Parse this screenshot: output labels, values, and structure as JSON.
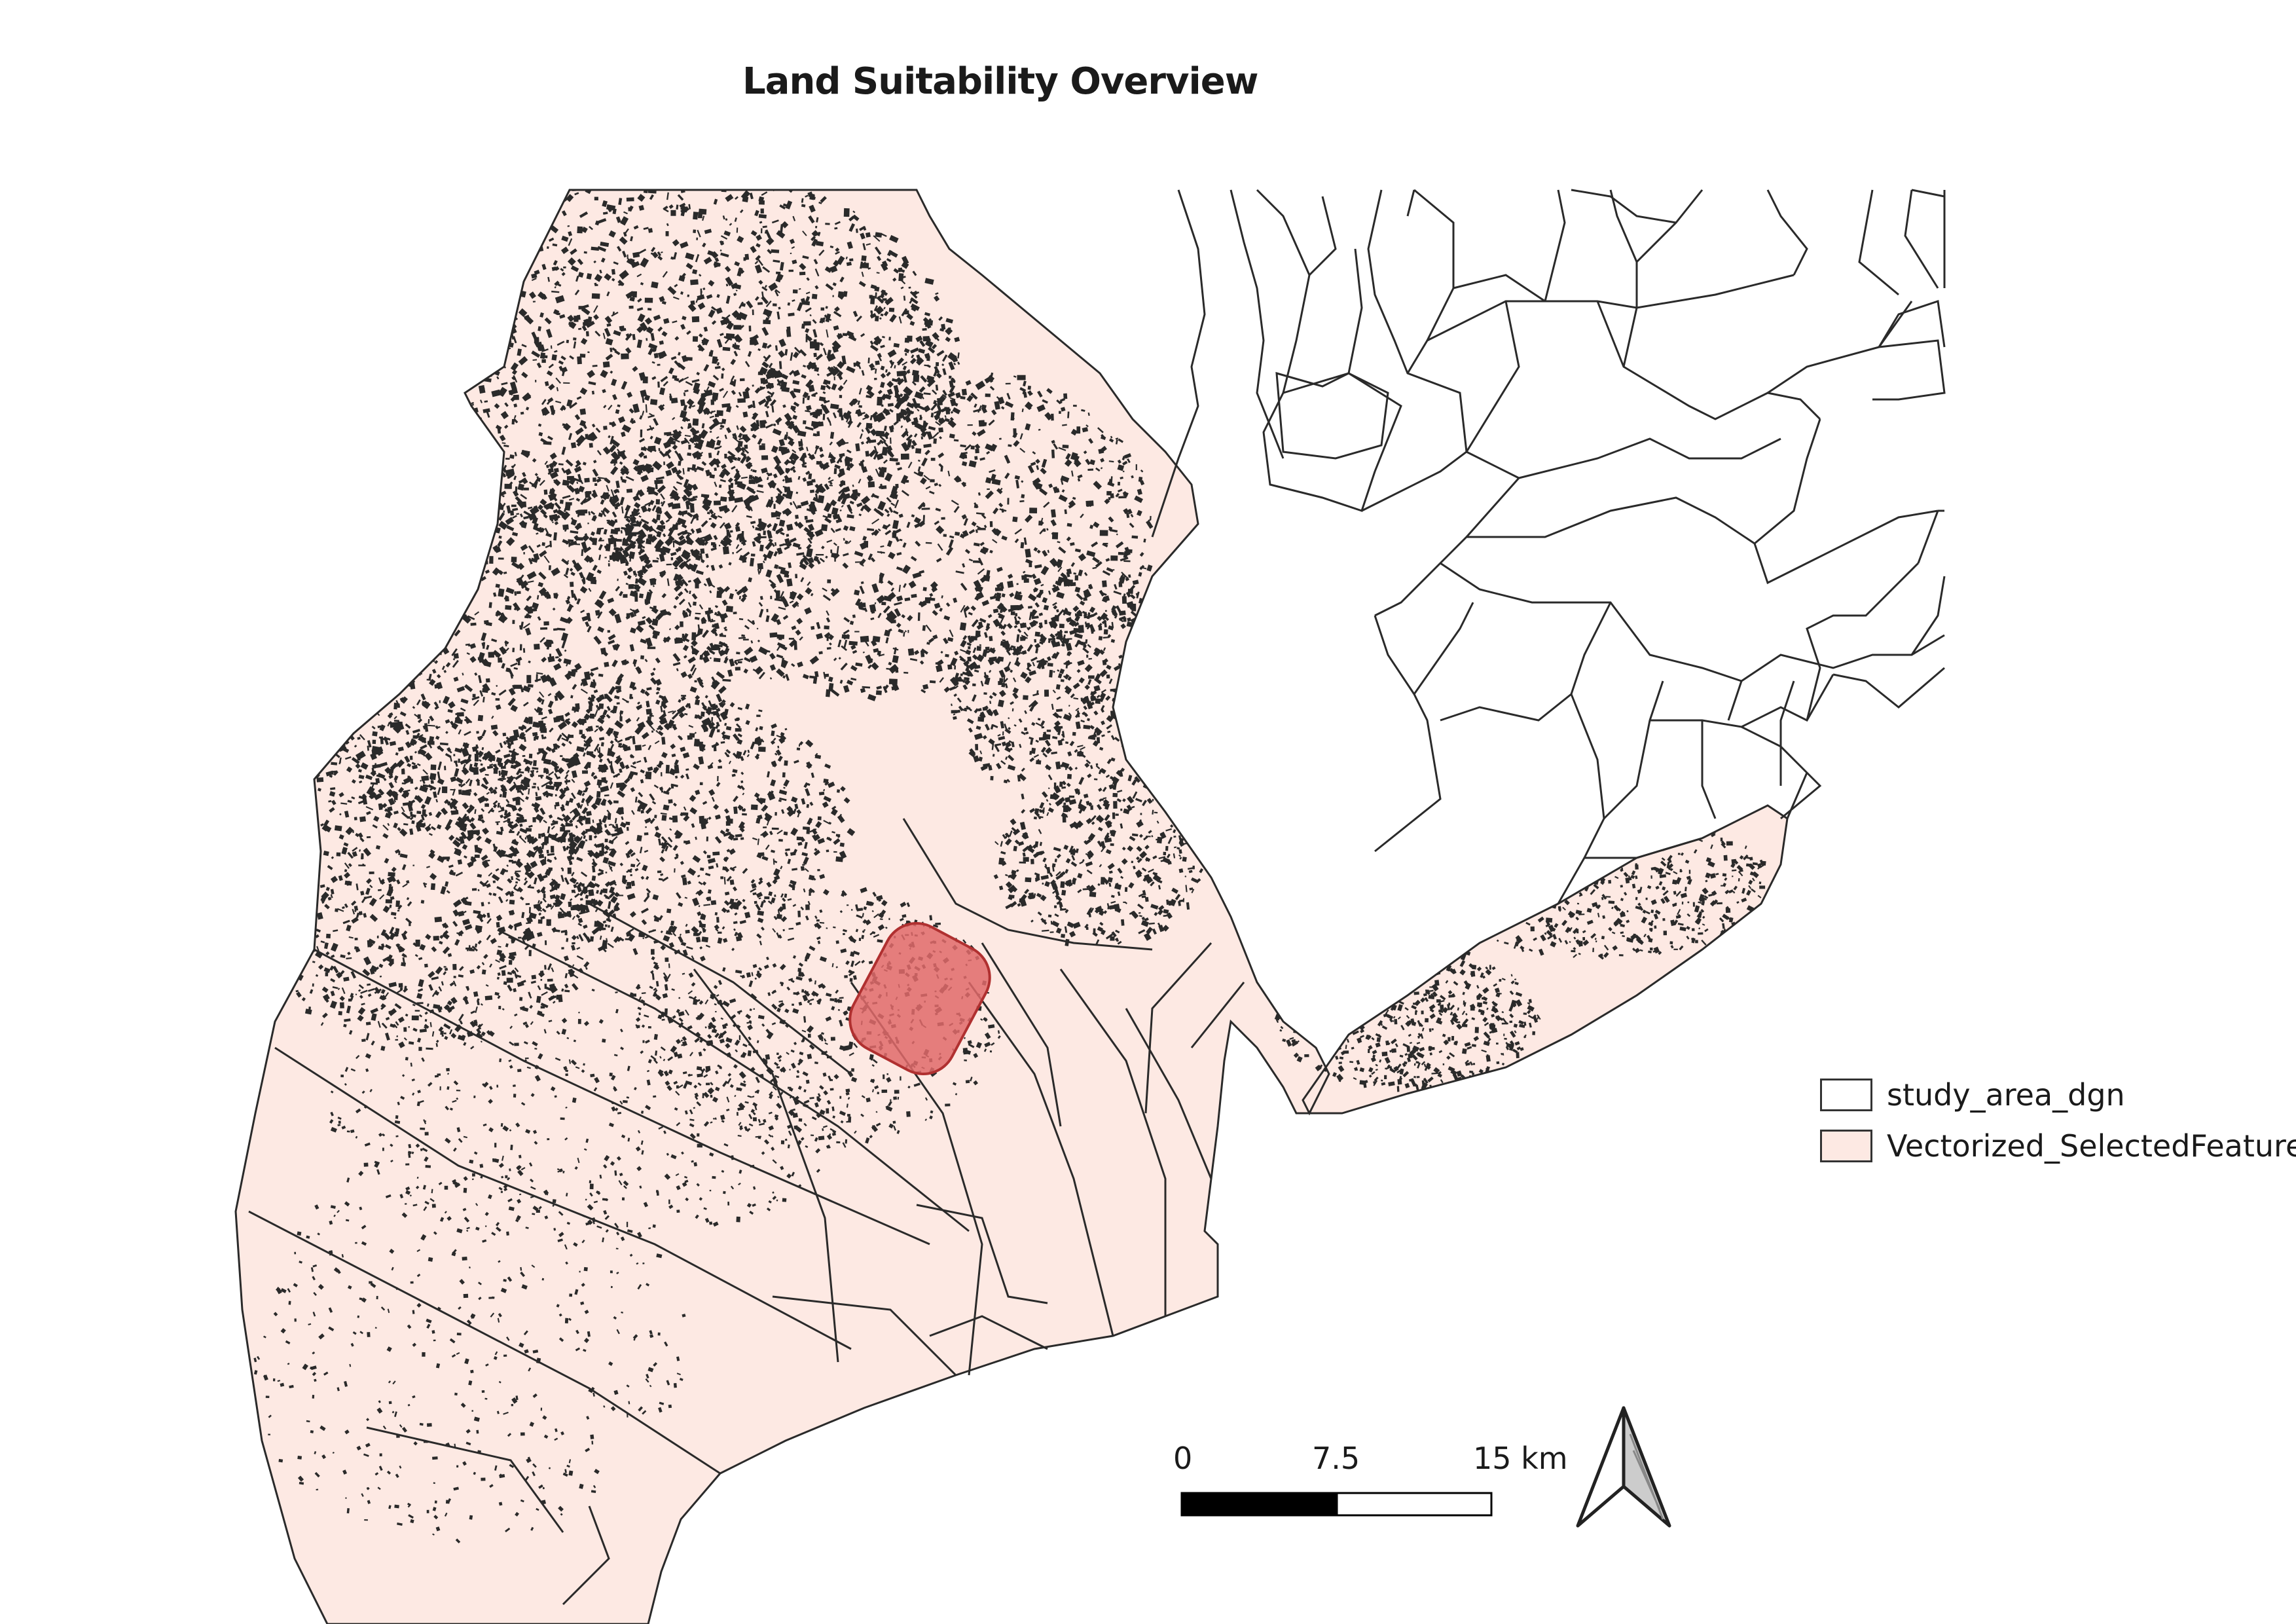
{
  "title": "Land Suitability Overview",
  "legend": {
    "items": [
      {
        "label": "study_area_dgn",
        "fill": "#ffffff",
        "stroke": "#333333"
      },
      {
        "label": "Vectorized_SelectedFeature",
        "fill": "#fde9e3",
        "stroke": "#333333"
      }
    ]
  },
  "scale_bar": {
    "tick_0": "0",
    "tick_mid": "7.5",
    "tick_end": "15 km"
  },
  "north_arrow": {
    "icon": "north-arrow-icon"
  },
  "colors": {
    "land_fill": "#fde9e3",
    "feature_lines": "#2a2a2a",
    "highlight_fill": "#e06a6a",
    "highlight_stroke": "#b03030"
  }
}
